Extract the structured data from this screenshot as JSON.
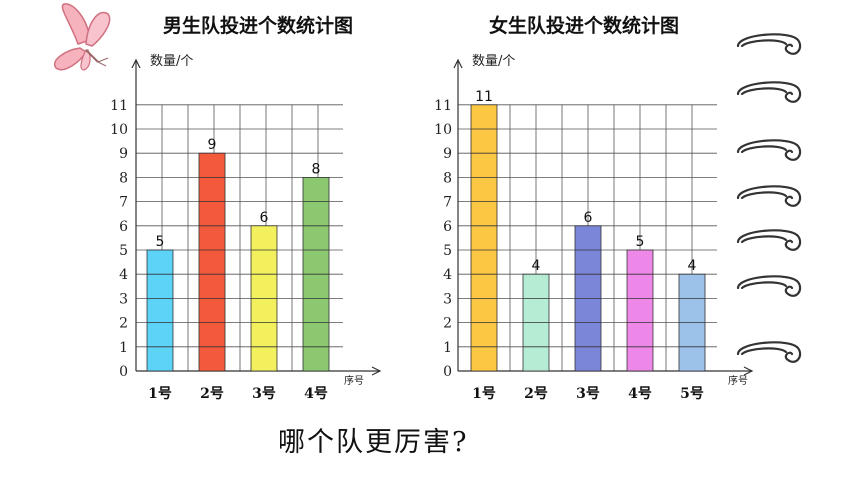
{
  "question": "哪个队更厉害?",
  "chart_data": [
    {
      "type": "bar",
      "title": "男生队投进个数统计图",
      "ylabel": "数量/个",
      "xlabel": "序号",
      "categories": [
        "1号",
        "2号",
        "3号",
        "4号"
      ],
      "values": [
        5,
        9,
        6,
        8
      ],
      "colors": [
        "#5cd3f7",
        "#f35a3c",
        "#f2f05c",
        "#8bc870"
      ],
      "ylim": [
        0,
        11
      ],
      "yticks": [
        "0",
        "1",
        "2",
        "3",
        "4",
        "5",
        "6",
        "7",
        "8",
        "9",
        "10",
        "11"
      ],
      "grid": true
    },
    {
      "type": "bar",
      "title": "女生队投进个数统计图",
      "ylabel": "数量/个",
      "xlabel": "序号",
      "categories": [
        "1号",
        "2号",
        "3号",
        "4号",
        "5号"
      ],
      "values": [
        11,
        4,
        6,
        5,
        4
      ],
      "colors": [
        "#fcc843",
        "#b6ecd4",
        "#7c86d8",
        "#ee88e8",
        "#9cc2ea"
      ],
      "ylim": [
        0,
        11
      ],
      "yticks": [
        "0",
        "1",
        "2",
        "3",
        "4",
        "5",
        "6",
        "7",
        "8",
        "9",
        "10",
        "11"
      ],
      "grid": true
    }
  ],
  "decorations": {
    "butterfly": "butterfly-icon",
    "tally_marks": "curved-tally-mark-icon"
  }
}
